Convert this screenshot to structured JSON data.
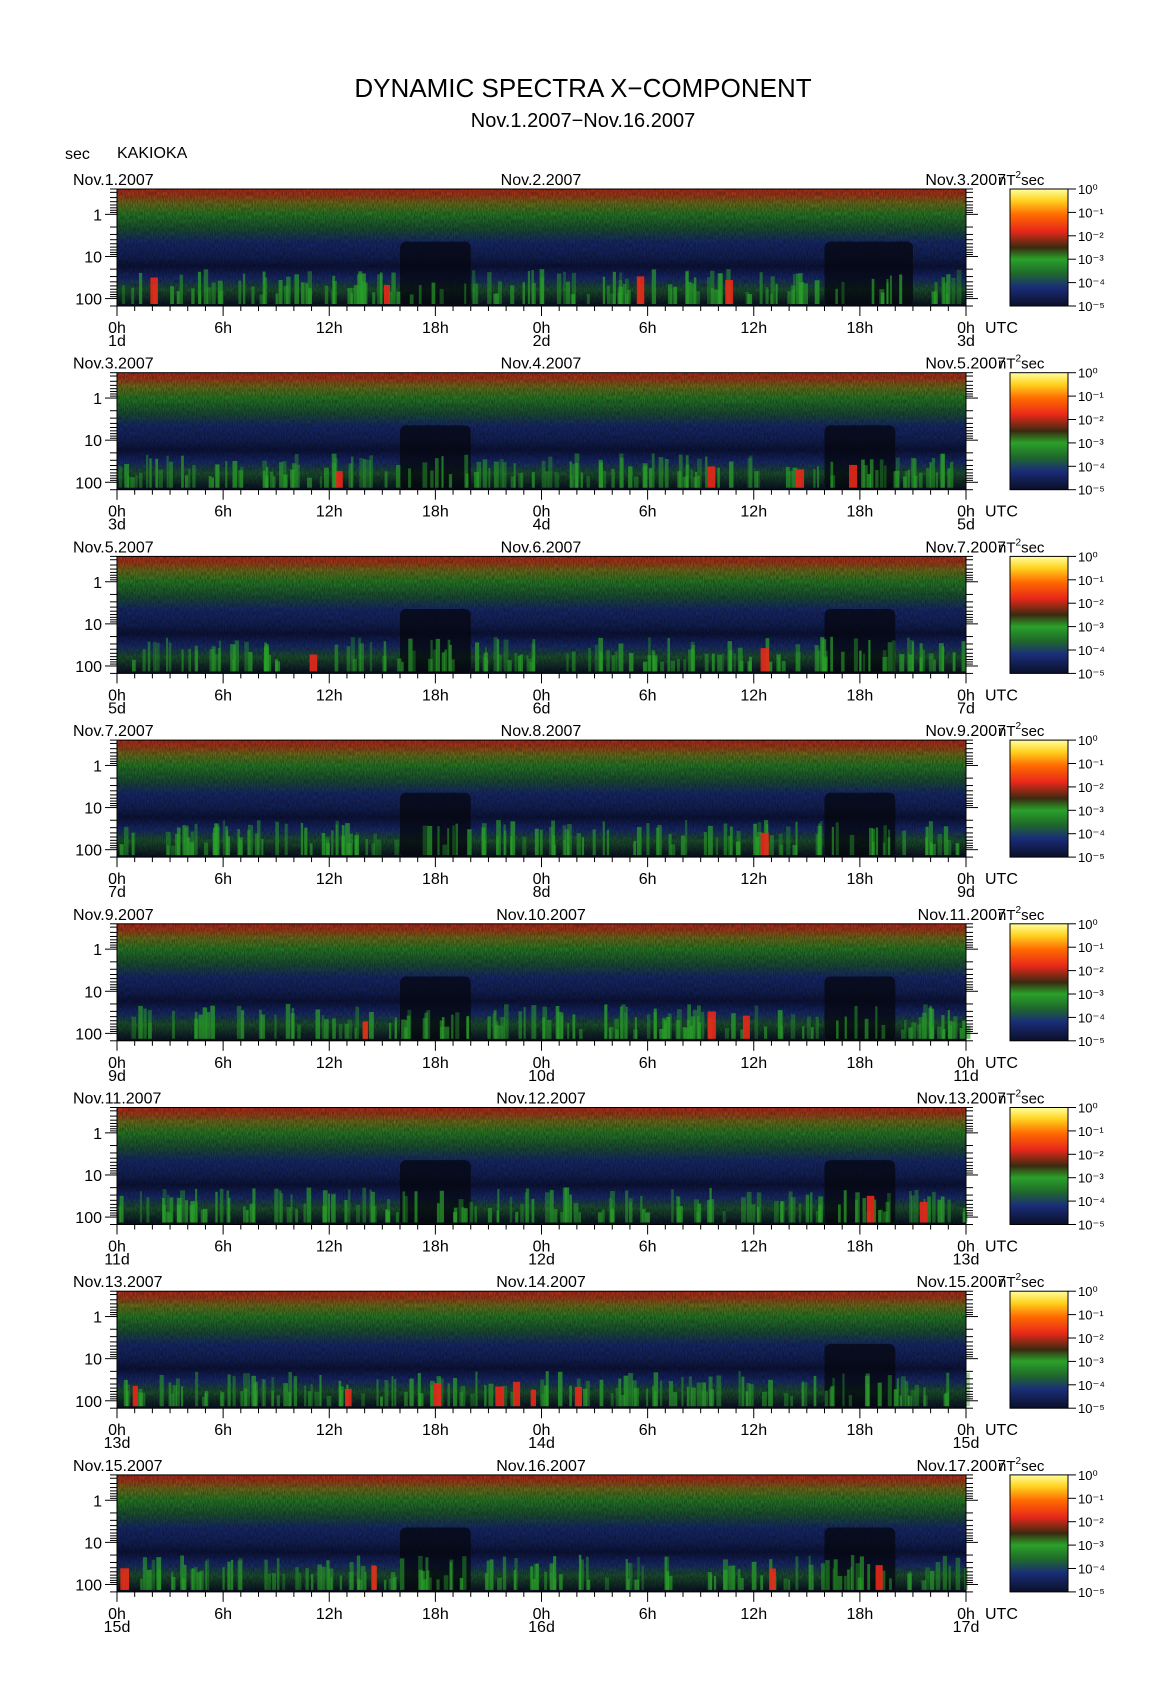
{
  "title": "DYNAMIC SPECTRA X−COMPONENT",
  "subtitle": "Nov.1.2007−Nov.16.2007",
  "y_unit_label": "sec",
  "station": "KAKIOKA",
  "colorbar_unit_prefix": "nT",
  "colorbar_unit_sup": "2",
  "colorbar_unit_suffix": "sec",
  "utc_label": "UTC",
  "colors": {
    "background": "#ffffff",
    "spectrum_low": "#0a0f28",
    "spectrum_mid_blue": "#1a2d78",
    "spectrum_green": "#2aa12a",
    "spectrum_red": "#e8281a",
    "spectrum_orange": "#ff8c00",
    "spectrum_yellow": "#ffeb2a"
  },
  "chart_data": {
    "type": "heatmap",
    "x_axis": "time (UTC hours)",
    "y_axis": "period (sec), log scale, inverted (1 at top, 100 at bottom)",
    "y_ticks": [
      "1",
      "10",
      "100"
    ],
    "x_tick_labels": [
      "0h",
      "6h",
      "12h",
      "18h",
      "0h",
      "6h",
      "12h",
      "18h",
      "0h"
    ],
    "color_scale": {
      "labels": [
        "10⁰",
        "10⁻¹",
        "10⁻²",
        "10⁻³",
        "10⁻⁴",
        "10⁻⁵"
      ],
      "range_log10": [
        -5,
        0
      ]
    },
    "panels": [
      {
        "start_label": "Nov.1.2007",
        "mid_label": "Nov.2.2007",
        "end_label": "Nov.3.2007",
        "day_start": "1d",
        "day_mid": "2d",
        "day_end": "3d",
        "red_bursts_h": [
          2,
          15.2,
          29.5,
          34.5
        ],
        "quiet_intervals_h": [
          [
            16,
            20
          ],
          [
            40,
            45
          ]
        ]
      },
      {
        "start_label": "Nov.3.2007",
        "mid_label": "Nov.4.2007",
        "end_label": "Nov.5.2007",
        "day_start": "3d",
        "day_mid": "4d",
        "day_end": "5d",
        "red_bursts_h": [
          12.5,
          33.5,
          38.5,
          41.5
        ],
        "quiet_intervals_h": [
          [
            16,
            20
          ],
          [
            40,
            44
          ]
        ]
      },
      {
        "start_label": "Nov.5.2007",
        "mid_label": "Nov.6.2007",
        "end_label": "Nov.7.2007",
        "day_start": "5d",
        "day_mid": "6d",
        "day_end": "7d",
        "red_bursts_h": [
          11,
          36.5
        ],
        "quiet_intervals_h": [
          [
            16,
            20
          ],
          [
            40,
            44
          ]
        ]
      },
      {
        "start_label": "Nov.7.2007",
        "mid_label": "Nov.8.2007",
        "end_label": "Nov.9.2007",
        "day_start": "7d",
        "day_mid": "8d",
        "day_end": "9d",
        "red_bursts_h": [
          36.5
        ],
        "quiet_intervals_h": [
          [
            16,
            20
          ],
          [
            40,
            44
          ]
        ]
      },
      {
        "start_label": "Nov.9.2007",
        "mid_label": "Nov.10.2007",
        "end_label": "Nov.11.2007",
        "day_start": "9d",
        "day_mid": "10d",
        "day_end": "11d",
        "red_bursts_h": [
          14,
          33.5,
          35.5
        ],
        "quiet_intervals_h": [
          [
            16,
            20
          ],
          [
            40,
            44
          ]
        ]
      },
      {
        "start_label": "Nov.11.2007",
        "mid_label": "Nov.12.2007",
        "end_label": "Nov.13.2007",
        "day_start": "11d",
        "day_mid": "12d",
        "day_end": "13d",
        "red_bursts_h": [
          42.5,
          45.5
        ],
        "quiet_intervals_h": [
          [
            16,
            20
          ],
          [
            40,
            44
          ]
        ]
      },
      {
        "start_label": "Nov.13.2007",
        "mid_label": "Nov.14.2007",
        "end_label": "Nov.15.2007",
        "day_start": "13d",
        "day_mid": "14d",
        "day_end": "15d",
        "red_bursts_h": [
          1,
          13,
          18,
          21.5,
          22.5,
          23.5,
          26
        ],
        "quiet_intervals_h": [
          [
            40,
            44
          ]
        ]
      },
      {
        "start_label": "Nov.15.2007",
        "mid_label": "Nov.16.2007",
        "end_label": "Nov.17.2007",
        "day_start": "15d",
        "day_mid": "16d",
        "day_end": "17d",
        "red_bursts_h": [
          0.3,
          14.5,
          37,
          43
        ],
        "quiet_intervals_h": [
          [
            16,
            20
          ],
          [
            40,
            44
          ]
        ]
      }
    ]
  }
}
